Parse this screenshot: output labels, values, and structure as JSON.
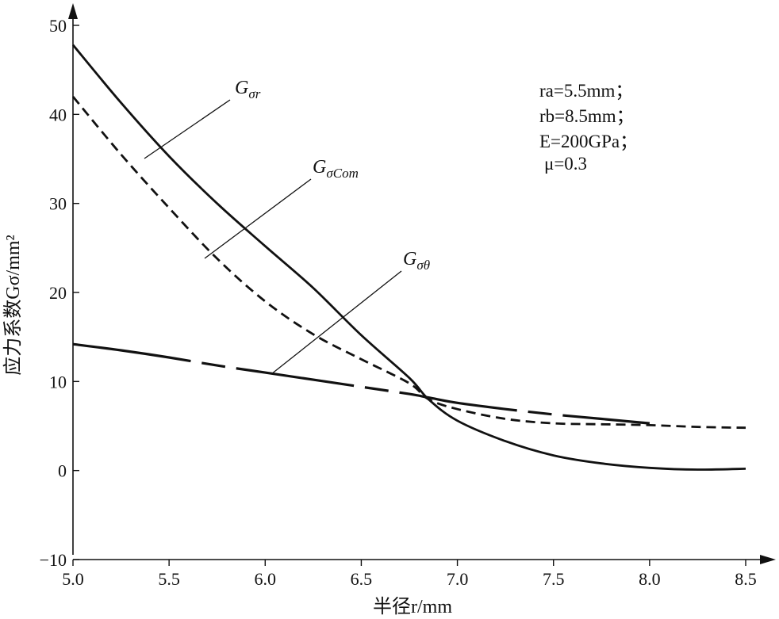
{
  "chart_data": {
    "type": "line",
    "title": "",
    "xlabel": "半径r/mm",
    "ylabel": "应力系数Gσ/mm²",
    "xlim": [
      5.0,
      8.5
    ],
    "ylim": [
      -10,
      50
    ],
    "x_ticks": [
      "5.0",
      "5.5",
      "6.0",
      "6.5",
      "7.0",
      "7.5",
      "8.0",
      "8.5"
    ],
    "y_ticks": [
      "50",
      "40",
      "30",
      "20",
      "10",
      "0",
      "−10"
    ],
    "grid": false,
    "series": [
      {
        "name": "Gσr",
        "style": "solid",
        "x": [
          5.0,
          5.25,
          5.5,
          5.75,
          6.0,
          6.25,
          6.5,
          6.75,
          6.85,
          7.0,
          7.25,
          7.5,
          7.75,
          8.0,
          8.25,
          8.5
        ],
        "y": [
          47.8,
          41.3,
          35.3,
          30.0,
          25.2,
          20.5,
          15.2,
          10.4,
          8.0,
          5.6,
          3.3,
          1.7,
          0.8,
          0.3,
          0.1,
          0.2
        ]
      },
      {
        "name": "GσCom",
        "style": "dashed",
        "x": [
          5.0,
          5.25,
          5.5,
          5.75,
          6.0,
          6.25,
          6.5,
          6.75,
          6.85,
          7.0,
          7.25,
          7.5,
          7.75,
          8.0,
          8.25,
          8.5
        ],
        "y": [
          42.0,
          35.5,
          29.5,
          23.8,
          19.0,
          15.3,
          12.5,
          9.8,
          8.0,
          6.9,
          5.8,
          5.3,
          5.2,
          5.1,
          4.9,
          4.8
        ]
      },
      {
        "name": "Gσθ",
        "style": "dash-dot",
        "x": [
          5.0,
          5.25,
          5.5,
          5.75,
          6.0,
          6.25,
          6.5,
          6.75,
          6.85,
          7.0,
          7.25,
          7.5,
          7.75,
          8.0
        ],
        "y": [
          14.2,
          13.5,
          12.7,
          11.8,
          11.0,
          10.2,
          9.4,
          8.6,
          8.2,
          7.6,
          6.9,
          6.3,
          5.8,
          5.3
        ]
      }
    ],
    "curve_labels": [
      {
        "main": "G",
        "sub": "σr"
      },
      {
        "main": "G",
        "sub": "σCom"
      },
      {
        "main": "G",
        "sub": "σθ"
      }
    ],
    "parameters": [
      "ra=5.5mm；",
      "rb=8.5mm；",
      "E=200GPa；",
      "μ=0.3"
    ]
  }
}
